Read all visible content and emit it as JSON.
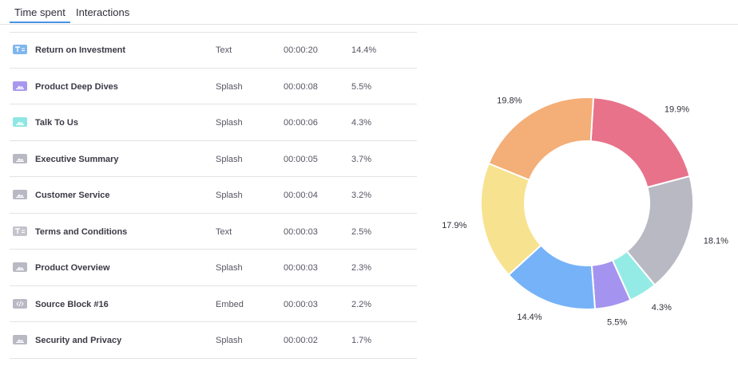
{
  "tabs": [
    {
      "label": "Time spent",
      "active": true
    },
    {
      "label": "Interactions",
      "active": false
    }
  ],
  "rows": [
    {
      "icon": "text-block-icon",
      "icon_color": "#7fb6ee",
      "name": "Return on Investment",
      "type": "Text",
      "time": "00:00:20",
      "percent": "14.4%"
    },
    {
      "icon": "splash-block-icon",
      "icon_color": "#a997ee",
      "name": "Product Deep Dives",
      "type": "Splash",
      "time": "00:00:08",
      "percent": "5.5%"
    },
    {
      "icon": "splash-block-icon",
      "icon_color": "#8ee7e2",
      "name": "Talk To Us",
      "type": "Splash",
      "time": "00:00:06",
      "percent": "4.3%"
    },
    {
      "icon": "splash-block-icon",
      "icon_color": "#b9b9c4",
      "name": "Executive Summary",
      "type": "Splash",
      "time": "00:00:05",
      "percent": "3.7%"
    },
    {
      "icon": "splash-block-icon",
      "icon_color": "#b9b9c4",
      "name": "Customer Service",
      "type": "Splash",
      "time": "00:00:04",
      "percent": "3.2%"
    },
    {
      "icon": "text-block-icon",
      "icon_color": "#c4c4cc",
      "name": "Terms and Conditions",
      "type": "Text",
      "time": "00:00:03",
      "percent": "2.5%"
    },
    {
      "icon": "splash-block-icon",
      "icon_color": "#b9b9c4",
      "name": "Product Overview",
      "type": "Splash",
      "time": "00:00:03",
      "percent": "2.3%"
    },
    {
      "icon": "embed-block-icon",
      "icon_color": "#b9b9c4",
      "name": "Source Block #16",
      "type": "Embed",
      "time": "00:00:03",
      "percent": "2.2%"
    },
    {
      "icon": "splash-block-icon",
      "icon_color": "#b9b9c4",
      "name": "Security and Privacy",
      "type": "Splash",
      "time": "00:00:02",
      "percent": "1.7%"
    }
  ],
  "chart_data": {
    "type": "pie",
    "donut": true,
    "slices": [
      {
        "value": 19.9,
        "label": "19.9%",
        "color": "#e7728a"
      },
      {
        "value": 18.1,
        "label": "18.1%",
        "color": "#b9b9c4"
      },
      {
        "value": 4.3,
        "label": "4.3%",
        "color": "#94ebe6"
      },
      {
        "value": 5.5,
        "label": "5.5%",
        "color": "#a593f0"
      },
      {
        "value": 14.4,
        "label": "14.4%",
        "color": "#75b2f8"
      },
      {
        "value": 17.9,
        "label": "17.9%",
        "color": "#f7e290"
      },
      {
        "value": 19.8,
        "label": "19.8%",
        "color": "#f4ae77"
      }
    ]
  }
}
